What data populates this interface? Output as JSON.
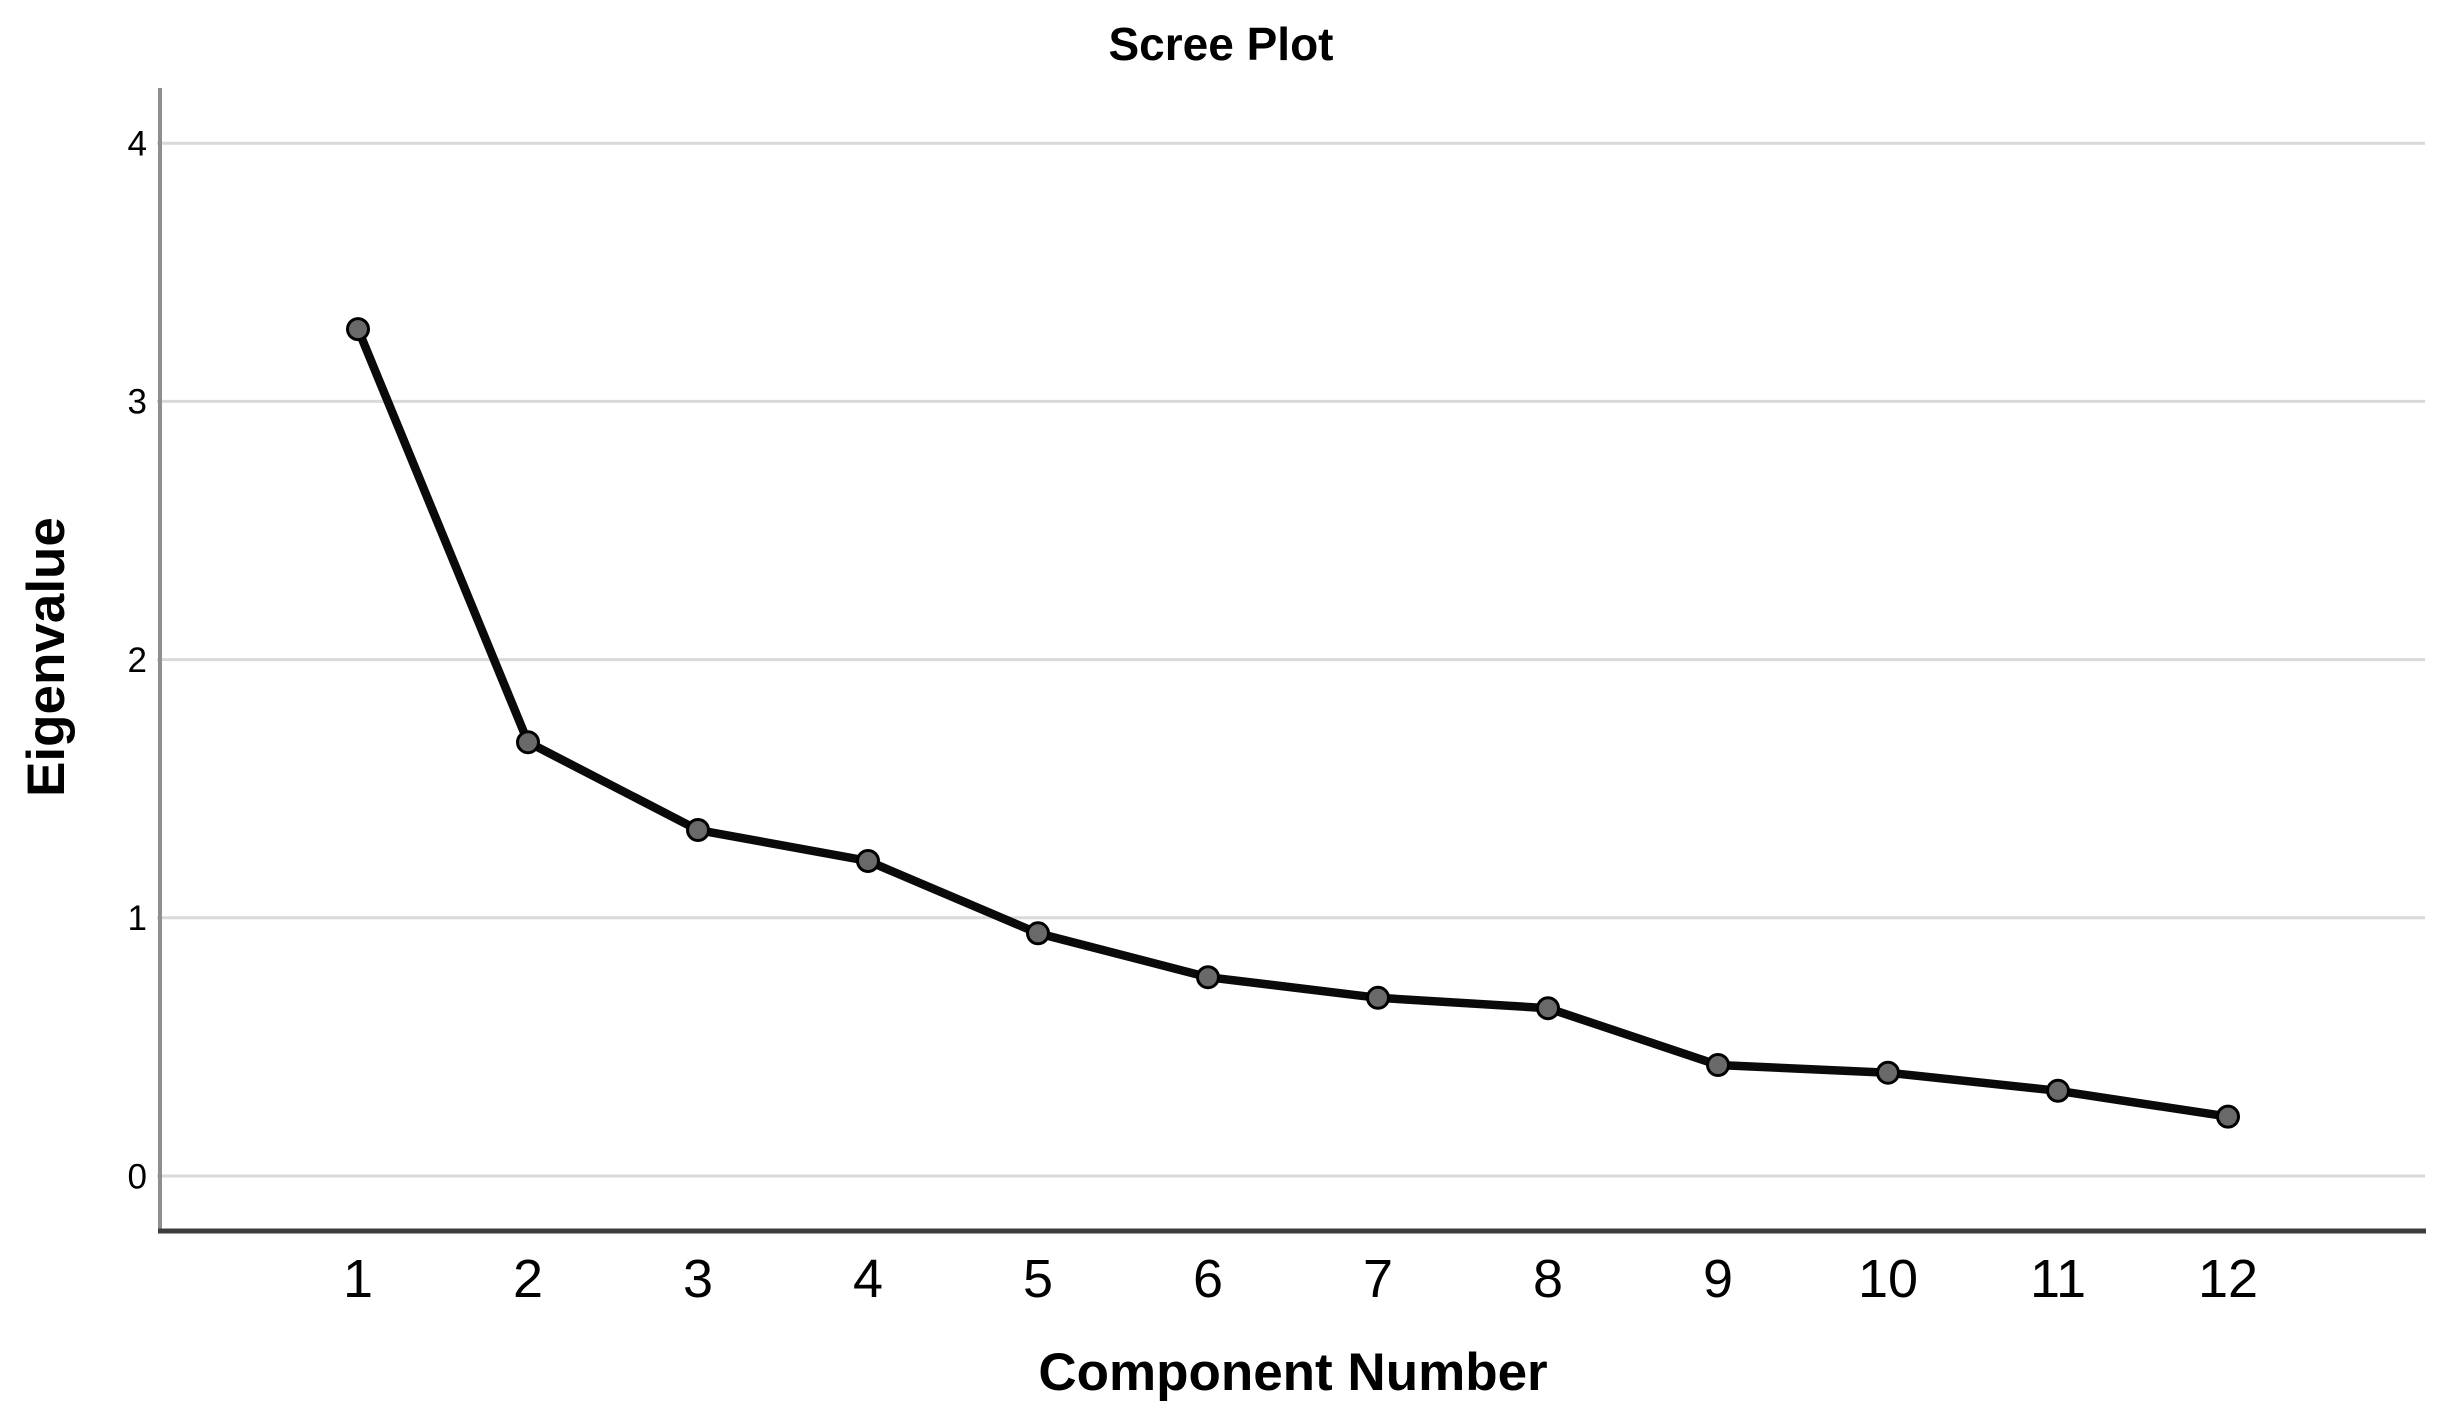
{
  "chart_data": {
    "type": "line",
    "title": "Scree Plot",
    "xlabel": "Component Number",
    "ylabel": "Eigenvalue",
    "categories": [
      1,
      2,
      3,
      4,
      5,
      6,
      7,
      8,
      9,
      10,
      11,
      12
    ],
    "values": [
      3.28,
      1.68,
      1.34,
      1.22,
      0.94,
      0.77,
      0.69,
      0.65,
      0.43,
      0.4,
      0.33,
      0.23
    ],
    "series_name": "Eigenvalue",
    "x_tick_labels": [
      "1",
      "2",
      "3",
      "4",
      "5",
      "6",
      "7",
      "8",
      "9",
      "10",
      "11",
      "12"
    ],
    "y_tick_labels": [
      "0",
      "1",
      "2",
      "3",
      "4"
    ],
    "y_tick_values": [
      0,
      1,
      2,
      3,
      4
    ],
    "ylim": [
      0,
      4
    ],
    "grid": "horizontal-only",
    "legend": "none",
    "colors": {
      "background": "#ffffff",
      "line": "#0a0a0a",
      "marker_fill": "#696969",
      "marker_stroke": "#000000",
      "gridline": "#d9d9d9",
      "y_axis_line": "#8e8e8e",
      "x_axis_line": "#3d3d3d",
      "text": "#000000"
    }
  }
}
